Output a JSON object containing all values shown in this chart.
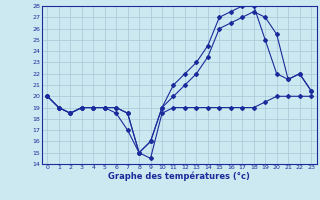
{
  "title": "Graphe des températures (°c)",
  "bg_color": "#cce8f0",
  "line_color": "#1a2b9b",
  "grid_color": "#a8c8d8",
  "xlim": [
    -0.5,
    23.5
  ],
  "ylim": [
    14,
    28
  ],
  "yticks": [
    14,
    15,
    16,
    17,
    18,
    19,
    20,
    21,
    22,
    23,
    24,
    25,
    26,
    27,
    28
  ],
  "xticks": [
    0,
    1,
    2,
    3,
    4,
    5,
    6,
    7,
    8,
    9,
    10,
    11,
    12,
    13,
    14,
    15,
    16,
    17,
    18,
    19,
    20,
    21,
    22,
    23
  ],
  "line1_x": [
    0,
    1,
    2,
    3,
    4,
    5,
    6,
    7,
    8,
    9,
    10,
    11,
    12,
    13,
    14,
    15,
    16,
    17,
    18,
    19,
    20,
    21,
    22,
    23
  ],
  "line1_y": [
    20,
    19,
    18.5,
    19,
    19,
    19,
    18.5,
    17,
    15,
    14.5,
    18.5,
    19,
    19,
    19,
    19,
    19,
    19,
    19,
    19,
    19.5,
    20,
    20,
    20,
    20
  ],
  "line2_x": [
    0,
    1,
    2,
    3,
    4,
    5,
    6,
    7,
    8,
    9,
    10,
    11,
    12,
    13,
    14,
    15,
    16,
    17,
    18,
    19,
    20,
    21,
    22,
    23
  ],
  "line2_y": [
    20,
    19,
    18.5,
    19,
    19,
    19,
    19,
    18.5,
    15,
    16,
    19,
    21,
    22,
    23,
    24.5,
    27,
    27.5,
    28,
    28,
    25,
    22,
    21.5,
    22,
    20.5
  ],
  "line3_x": [
    0,
    1,
    2,
    3,
    4,
    5,
    6,
    7,
    8,
    9,
    10,
    11,
    12,
    13,
    14,
    15,
    16,
    17,
    18,
    19,
    20,
    21,
    22,
    23
  ],
  "line3_y": [
    20,
    19,
    18.5,
    19,
    19,
    19,
    19,
    18.5,
    15,
    16,
    19,
    20,
    21,
    22,
    23.5,
    26,
    26.5,
    27,
    27.5,
    27,
    25.5,
    21.5,
    22,
    20.5
  ]
}
